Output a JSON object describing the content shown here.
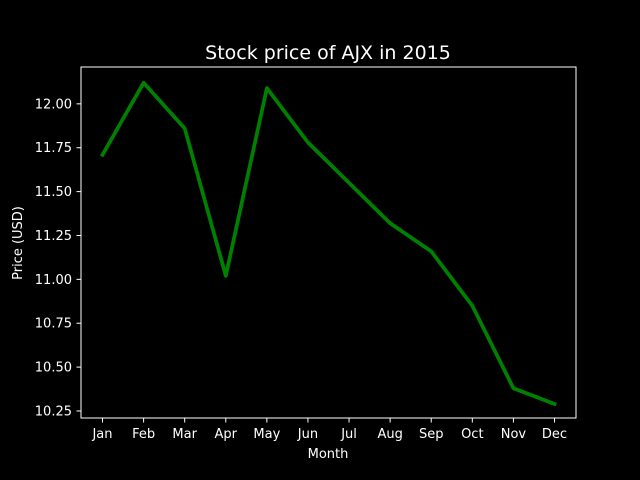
{
  "chart_data": {
    "type": "line",
    "title": "Stock price of AJX in 2015",
    "xlabel": "Month",
    "ylabel": "Price (USD)",
    "categories": [
      "Jan",
      "Feb",
      "Mar",
      "Apr",
      "May",
      "Jun",
      "Jul",
      "Aug",
      "Sep",
      "Oct",
      "Nov",
      "Dec"
    ],
    "series": [
      {
        "values": [
          11.71,
          12.12,
          11.86,
          11.02,
          12.09,
          11.78,
          11.55,
          11.32,
          11.16,
          10.85,
          10.38,
          10.29
        ]
      }
    ],
    "ylim": [
      10.21,
      12.21
    ],
    "yticks": [
      10.25,
      10.5,
      10.75,
      11.0,
      11.25,
      11.5,
      11.75,
      12.0
    ],
    "ytick_labels": [
      "10.25",
      "10.50",
      "10.75",
      "11.00",
      "11.25",
      "11.50",
      "11.75",
      "12.00"
    ],
    "grid": false,
    "legend": "none",
    "colors": {
      "background": "#000000",
      "axes": "#ffffff",
      "text": "#ffffff",
      "line": "#008000"
    }
  }
}
